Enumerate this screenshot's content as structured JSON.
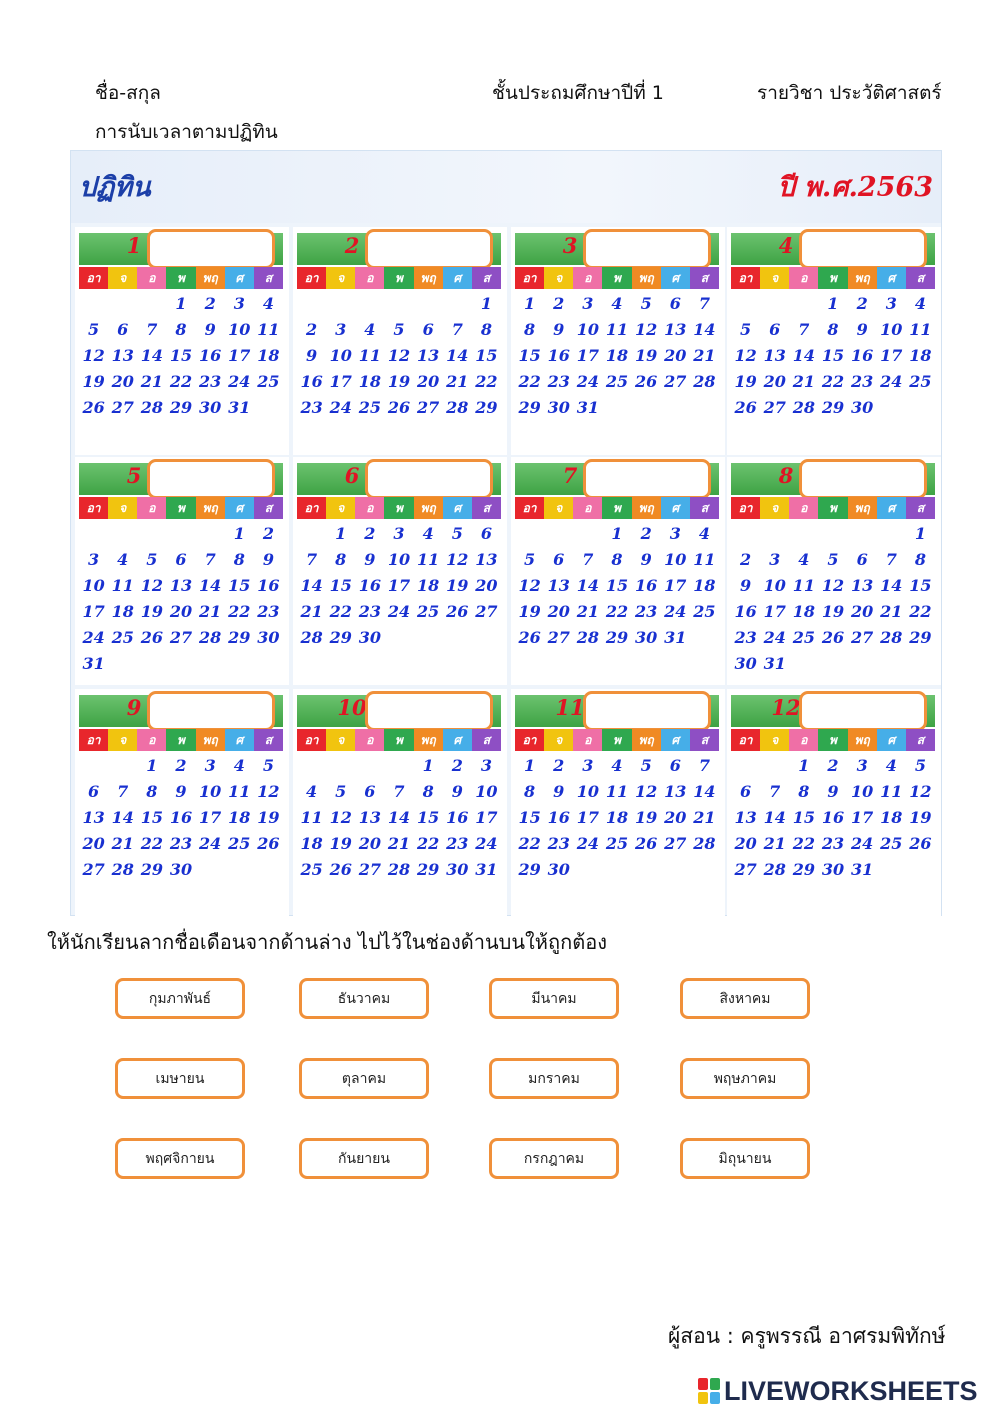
{
  "header": {
    "name_label": "ชื่อ-สกุล",
    "grade": "ชั้นประถมศึกษาปีที่ 1",
    "subject": "รายวิชา ประวัติศาสตร์",
    "topic": "การนับเวลาตามปฏิทิน"
  },
  "calendar": {
    "title": "ปฏิทิน",
    "year": "ปี พ.ศ.2563",
    "day_headers": [
      "อา",
      "จ",
      "อ",
      "พ",
      "พฤ",
      "ศ",
      "ส"
    ],
    "day_colors": [
      "#e8262c",
      "#f1c40f",
      "#ef6fa6",
      "#2fa84f",
      "#f08a24",
      "#46aee8",
      "#8e4fc4"
    ],
    "months": [
      {
        "num": "1",
        "offset": 3,
        "days": 31
      },
      {
        "num": "2",
        "offset": 6,
        "days": 29
      },
      {
        "num": "3",
        "offset": 0,
        "days": 31
      },
      {
        "num": "4",
        "offset": 3,
        "days": 30
      },
      {
        "num": "5",
        "offset": 5,
        "days": 31
      },
      {
        "num": "6",
        "offset": 1,
        "days": 30
      },
      {
        "num": "7",
        "offset": 3,
        "days": 31
      },
      {
        "num": "8",
        "offset": 6,
        "days": 31
      },
      {
        "num": "9",
        "offset": 2,
        "days": 30
      },
      {
        "num": "10",
        "offset": 4,
        "days": 31
      },
      {
        "num": "11",
        "offset": 0,
        "days": 30
      },
      {
        "num": "12",
        "offset": 2,
        "days": 31
      }
    ]
  },
  "instruction": "ให้นักเรียนลากชื่อเดือนจากด้านล่าง ไปไว้ในช่องด้านบนให้ถูกต้อง",
  "choices": [
    "กุมภาพันธ์",
    "ธันวาคม",
    "มีนาคม",
    "สิงหาคม",
    "เมษายน",
    "ตุลาคม",
    "มกราคม",
    "พฤษภาคม",
    "พฤศจิกายน",
    "กันยายน",
    "กรกฎาคม",
    "มิถุนายน"
  ],
  "footer": {
    "teacher": "ผู้สอน : ครูพรรณี  อาศรมพิทักษ์",
    "brand": "LIVEWORKSHEETS",
    "brand_colors": [
      "#e8262c",
      "#2fa84f",
      "#f1c40f",
      "#46aee8"
    ]
  }
}
